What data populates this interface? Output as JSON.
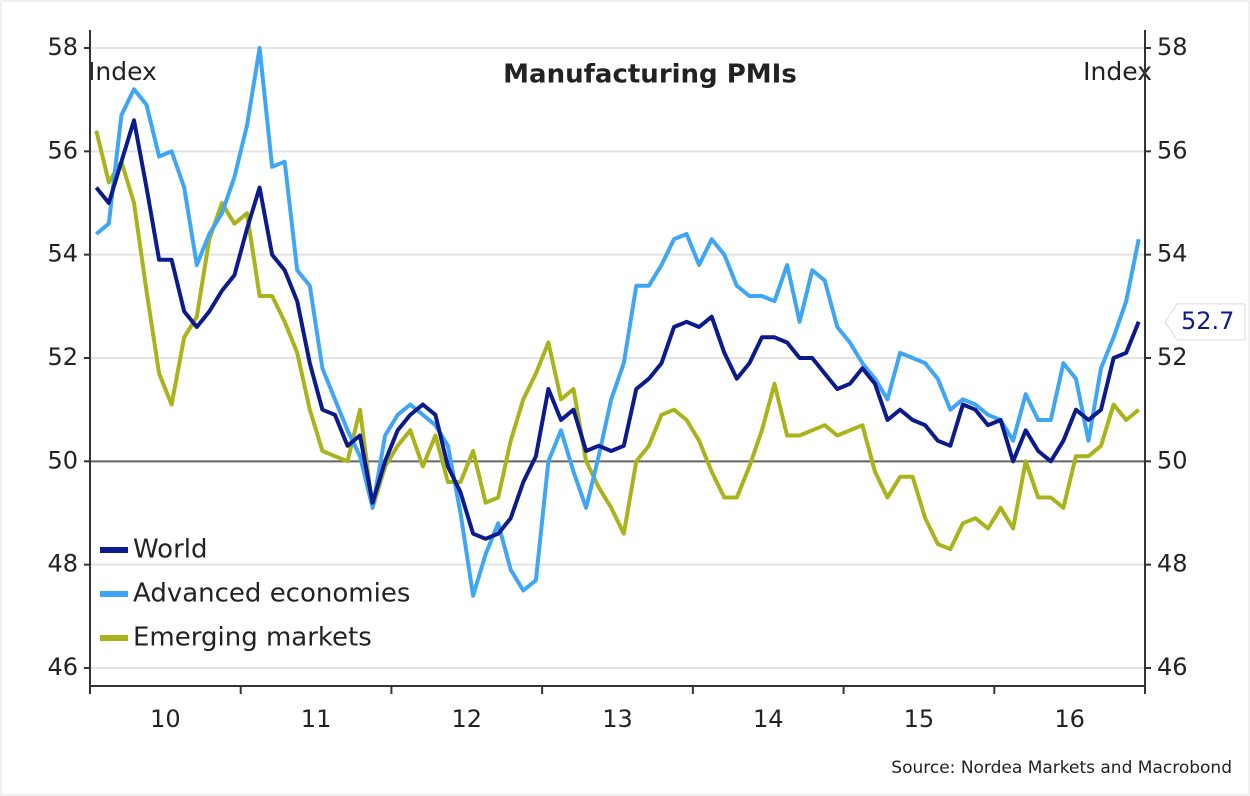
{
  "chart_data": {
    "type": "line",
    "title": "Manufacturing PMIs",
    "y_label": "Index",
    "y2_label": "Index",
    "source": "Source: Nordea Markets and Macrobond",
    "categories": [
      null,
      null,
      null,
      null,
      null,
      null,
      "10",
      null,
      null,
      null,
      null,
      null,
      null,
      null,
      null,
      null,
      null,
      null,
      "11",
      null,
      null,
      null,
      null,
      null,
      null,
      null,
      null,
      null,
      null,
      null,
      "12",
      null,
      null,
      null,
      null,
      null,
      null,
      null,
      null,
      null,
      null,
      null,
      "13",
      null,
      null,
      null,
      null,
      null,
      null,
      null,
      null,
      null,
      null,
      null,
      "14",
      null,
      null,
      null,
      null,
      null,
      null,
      null,
      null,
      null,
      null,
      null,
      "15",
      null,
      null,
      null,
      null,
      null,
      null,
      null,
      null,
      null,
      null,
      null,
      "16",
      null,
      null,
      null,
      null,
      null
    ],
    "series": [
      {
        "name": "World",
        "color": "#0b1a8c",
        "values": [
          55.3,
          55.0,
          55.8,
          56.6,
          55.3,
          53.9,
          53.9,
          52.9,
          52.6,
          52.9,
          53.3,
          53.6,
          54.5,
          55.3,
          54.0,
          53.7,
          53.1,
          51.9,
          51.0,
          50.9,
          50.3,
          50.5,
          49.2,
          50.0,
          50.6,
          50.9,
          51.1,
          50.9,
          49.9,
          49.4,
          48.6,
          48.5,
          48.6,
          48.9,
          49.6,
          50.1,
          51.4,
          50.8,
          51.0,
          50.2,
          50.3,
          50.2,
          50.3,
          51.4,
          51.6,
          51.9,
          52.6,
          52.7,
          52.6,
          52.8,
          52.1,
          51.6,
          51.9,
          52.4,
          52.4,
          52.3,
          52.0,
          52.0,
          51.7,
          51.4,
          51.5,
          51.8,
          51.5,
          50.8,
          51.0,
          50.8,
          50.7,
          50.4,
          50.3,
          51.1,
          51.0,
          50.7,
          50.8,
          50.0,
          50.6,
          50.2,
          50.0,
          50.4,
          51.0,
          50.8,
          51.0,
          52.0,
          52.1,
          52.7
        ]
      },
      {
        "name": "Advanced economies",
        "color": "#3ea6f5",
        "values": [
          54.4,
          54.6,
          56.7,
          57.2,
          56.9,
          55.9,
          56.0,
          55.3,
          53.8,
          54.4,
          54.8,
          55.5,
          56.5,
          58.0,
          55.7,
          55.8,
          53.7,
          53.4,
          51.8,
          51.2,
          50.6,
          50.1,
          49.1,
          50.5,
          50.9,
          51.1,
          50.9,
          50.7,
          50.3,
          49.0,
          47.4,
          48.2,
          48.8,
          47.9,
          47.5,
          47.7,
          50.0,
          50.6,
          49.8,
          49.1,
          50.1,
          51.2,
          51.9,
          53.4,
          53.4,
          53.8,
          54.3,
          54.4,
          53.8,
          54.3,
          54.0,
          53.4,
          53.2,
          53.2,
          53.1,
          53.8,
          52.7,
          53.7,
          53.5,
          52.6,
          52.3,
          51.9,
          51.6,
          51.2,
          52.1,
          52.0,
          51.9,
          51.6,
          51.0,
          51.2,
          51.1,
          50.9,
          50.8,
          50.4,
          51.3,
          50.8,
          50.8,
          51.9,
          51.6,
          50.4,
          51.8,
          52.4,
          53.1,
          54.3
        ]
      },
      {
        "name": "Emerging markets",
        "color": "#a9b31a",
        "values": [
          56.4,
          55.4,
          55.8,
          55.0,
          53.3,
          51.7,
          51.1,
          52.4,
          52.8,
          54.3,
          55.0,
          54.6,
          54.8,
          53.2,
          53.2,
          52.7,
          52.1,
          51.0,
          50.2,
          50.1,
          50.0,
          51.0,
          49.1,
          49.9,
          50.3,
          50.6,
          49.9,
          50.5,
          49.6,
          49.6,
          50.2,
          49.2,
          49.3,
          50.4,
          51.2,
          51.7,
          52.3,
          51.2,
          51.4,
          50.0,
          49.5,
          49.1,
          48.6,
          50.0,
          50.3,
          50.9,
          51.0,
          50.8,
          50.4,
          49.8,
          49.3,
          49.3,
          49.9,
          50.6,
          51.5,
          50.5,
          50.5,
          50.6,
          50.7,
          50.5,
          50.6,
          50.7,
          49.8,
          49.3,
          49.7,
          49.7,
          48.9,
          48.4,
          48.3,
          48.8,
          48.9,
          48.7,
          49.1,
          48.7,
          50.0,
          49.3,
          49.3,
          49.1,
          50.1,
          50.1,
          50.3,
          51.1,
          50.8,
          51.0
        ]
      }
    ],
    "ylim": [
      46,
      58
    ],
    "yticks": [
      46,
      48,
      50,
      52,
      54,
      56,
      58
    ],
    "y2lim": [
      46,
      58
    ],
    "y2ticks": [
      46,
      48,
      50,
      52,
      54,
      56,
      58
    ],
    "hline": 50,
    "grid": true,
    "legend": "lower left"
  }
}
